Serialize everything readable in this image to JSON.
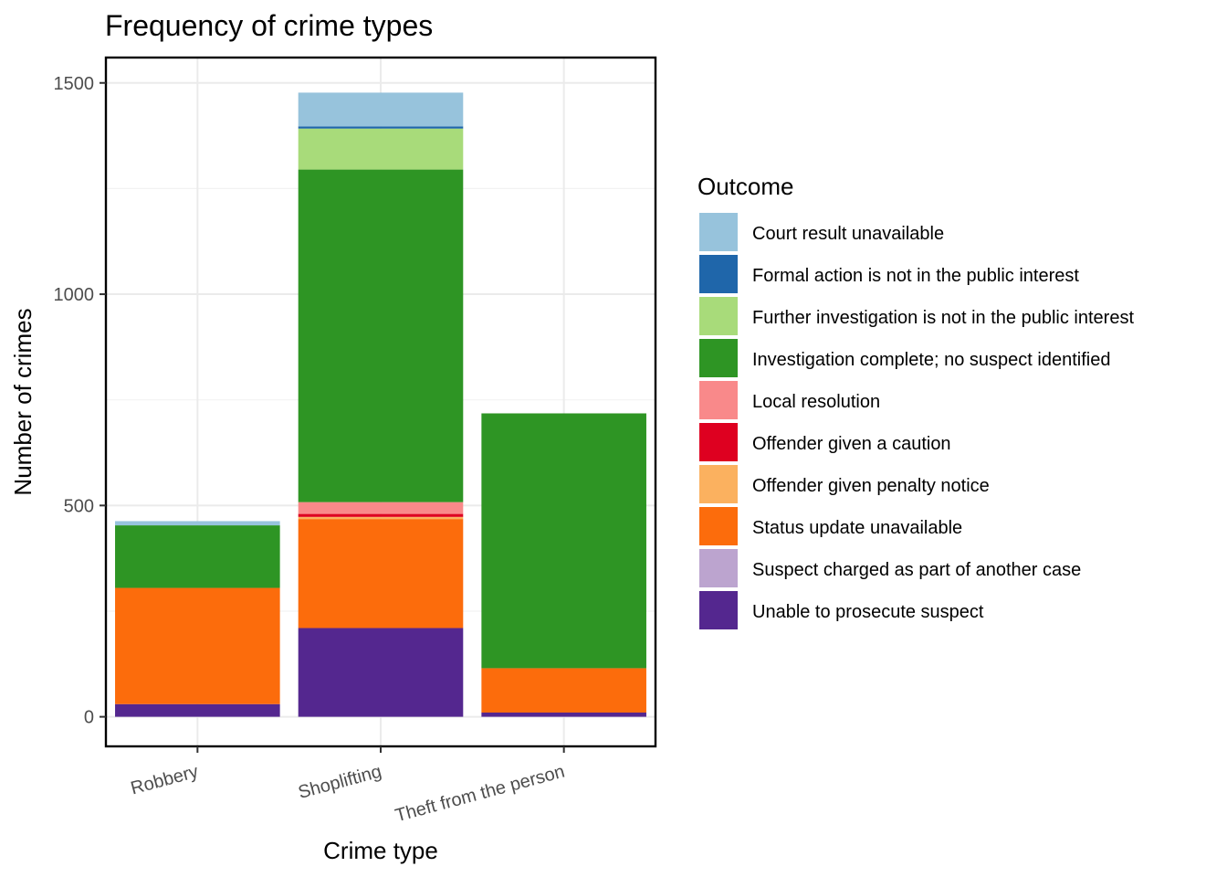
{
  "chart_data": {
    "type": "bar",
    "stacked": true,
    "title": "Frequency of crime types",
    "xlabel": "Crime type",
    "ylabel": "Number of crimes",
    "categories": [
      "Robbery",
      "Shoplifting",
      "Theft from the person"
    ],
    "ylim": [
      -70,
      1560
    ],
    "yticks": [
      0,
      500,
      1000,
      1500
    ],
    "grid": true,
    "legend_title": "Outcome",
    "legend_position": "right",
    "series": [
      {
        "name": "Unable to prosecute suspect",
        "color": "#54278F",
        "values": [
          30,
          210,
          10
        ]
      },
      {
        "name": "Suspect charged as part of another case",
        "color": "#BCA4CF",
        "values": [
          0,
          0,
          0
        ]
      },
      {
        "name": "Status update unavailable",
        "color": "#FC6C0C",
        "values": [
          275,
          258,
          105
        ]
      },
      {
        "name": "Offender given penalty notice",
        "color": "#FBB15F",
        "values": [
          0,
          5,
          0
        ]
      },
      {
        "name": "Offender given a caution",
        "color": "#DE0020",
        "values": [
          0,
          7,
          0
        ]
      },
      {
        "name": "Local resolution",
        "color": "#F9898A",
        "values": [
          0,
          28,
          0
        ]
      },
      {
        "name": "Investigation complete; no suspect identified",
        "color": "#2E9524",
        "values": [
          148,
          787,
          603
        ]
      },
      {
        "name": "Further investigation is not in the public interest",
        "color": "#A8DB7A",
        "values": [
          0,
          97,
          0
        ]
      },
      {
        "name": "Formal action is not in the public interest",
        "color": "#1F66AA",
        "values": [
          0,
          5,
          0
        ]
      },
      {
        "name": "Court result unavailable",
        "color": "#97C3DC",
        "values": [
          10,
          80,
          0
        ]
      }
    ]
  }
}
